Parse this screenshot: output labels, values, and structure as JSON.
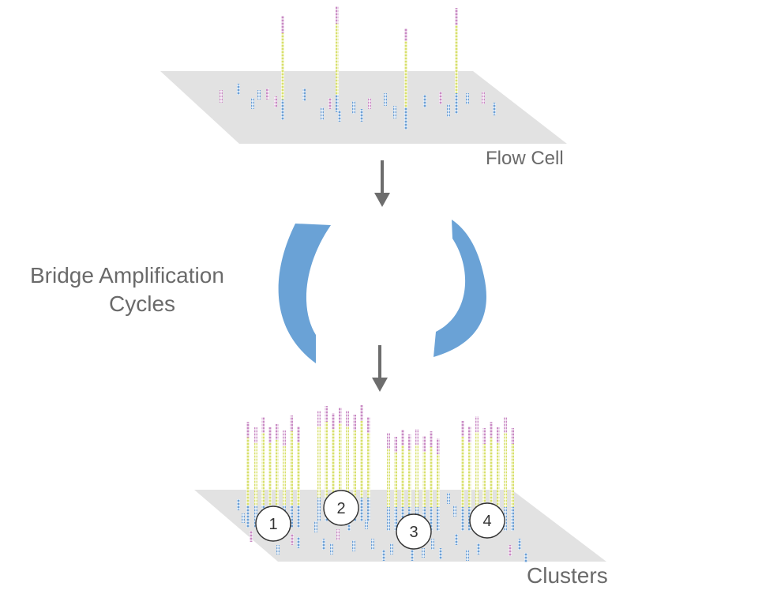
{
  "labels": {
    "flow_cell": "Flow Cell",
    "bridge_line1": "Bridge Amplification",
    "bridge_line2": "Cycles",
    "clusters": "Clusters"
  },
  "cluster_numbers": [
    "1",
    "2",
    "3",
    "4"
  ],
  "colors": {
    "surface": "#e2e2e2",
    "arrow": "#6d6d6d",
    "cycle_arc": "#6aa2d6",
    "segment_blue": "#6b9fd4",
    "segment_yellow": "#d8e06a",
    "segment_pink": "#c98ac4",
    "circle_stroke": "#333333",
    "text": "#6a6a6a"
  }
}
